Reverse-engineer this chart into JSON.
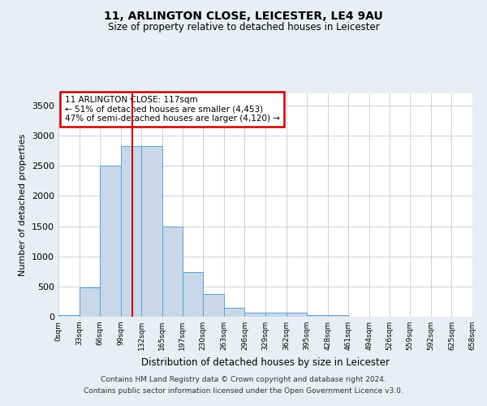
{
  "title": "11, ARLINGTON CLOSE, LEICESTER, LE4 9AU",
  "subtitle": "Size of property relative to detached houses in Leicester",
  "xlabel": "Distribution of detached houses by size in Leicester",
  "ylabel": "Number of detached properties",
  "bin_edges": [
    0,
    33,
    66,
    99,
    132,
    165,
    197,
    230,
    263,
    296,
    329,
    362,
    395,
    428,
    461,
    494,
    526,
    559,
    592,
    625,
    658
  ],
  "bar_heights": [
    30,
    480,
    2500,
    2820,
    2820,
    1500,
    740,
    380,
    145,
    65,
    65,
    65,
    30,
    30,
    0,
    0,
    0,
    0,
    0,
    0
  ],
  "bar_color": "#c8d8e8",
  "bar_edge_color": "#5a9fd4",
  "property_size": 117,
  "red_line_color": "#cc0000",
  "annotation_text": "11 ARLINGTON CLOSE: 117sqm\n← 51% of detached houses are smaller (4,453)\n47% of semi-detached houses are larger (4,120) →",
  "annotation_box_color": "#cc0000",
  "ylim": [
    0,
    3700
  ],
  "yticks": [
    0,
    500,
    1000,
    1500,
    2000,
    2500,
    3000,
    3500
  ],
  "tick_labels": [
    "0sqm",
    "33sqm",
    "66sqm",
    "99sqm",
    "132sqm",
    "165sqm",
    "197sqm",
    "230sqm",
    "263sqm",
    "296sqm",
    "329sqm",
    "362sqm",
    "395sqm",
    "428sqm",
    "461sqm",
    "494sqm",
    "526sqm",
    "559sqm",
    "592sqm",
    "625sqm",
    "658sqm"
  ],
  "footnote1": "Contains HM Land Registry data © Crown copyright and database right 2024.",
  "footnote2": "Contains public sector information licensed under the Open Government Licence v3.0.",
  "bg_color": "#e8eef4",
  "plot_bg_color": "#ffffff",
  "grid_color": "#c0ccd8"
}
